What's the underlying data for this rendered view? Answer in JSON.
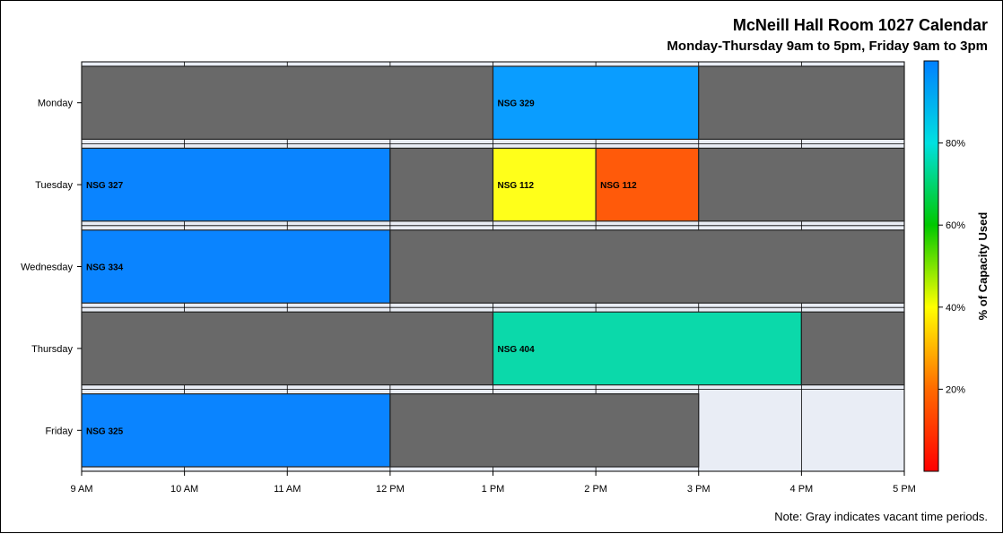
{
  "chart_data": {
    "type": "bar",
    "orientation": "horizontal-timeline",
    "title": "McNeill Hall Room 1027 Calendar",
    "subtitle": "Monday-Thursday 9am to 5pm, Friday 9am to 3pm",
    "footnote": "Note: Gray indicates vacant time periods.",
    "categories": [
      "Monday",
      "Tuesday",
      "Wednesday",
      "Thursday",
      "Friday"
    ],
    "x_ticks": [
      {
        "value": 9,
        "label": "9 AM"
      },
      {
        "value": 10,
        "label": "10 AM"
      },
      {
        "value": 11,
        "label": "11 AM"
      },
      {
        "value": 12,
        "label": "12 PM"
      },
      {
        "value": 13,
        "label": "1 PM"
      },
      {
        "value": 14,
        "label": "2 PM"
      },
      {
        "value": 15,
        "label": "3 PM"
      },
      {
        "value": 16,
        "label": "4 PM"
      },
      {
        "value": 17,
        "label": "5 PM"
      }
    ],
    "xlim": [
      9,
      17
    ],
    "grid": true,
    "vacant_color": "#696969",
    "background_color": "#E9EDF5",
    "segments": [
      {
        "day": "Monday",
        "start": 9,
        "end": 13,
        "vacant": true,
        "label": ""
      },
      {
        "day": "Monday",
        "start": 13,
        "end": 15,
        "vacant": false,
        "label": "NSG 329",
        "color": "#0A9DFF"
      },
      {
        "day": "Monday",
        "start": 15,
        "end": 17,
        "vacant": true,
        "label": ""
      },
      {
        "day": "Tuesday",
        "start": 9,
        "end": 12,
        "vacant": false,
        "label": "NSG 327",
        "color": "#0A84FF"
      },
      {
        "day": "Tuesday",
        "start": 12,
        "end": 13,
        "vacant": true,
        "label": ""
      },
      {
        "day": "Tuesday",
        "start": 13,
        "end": 14,
        "vacant": false,
        "label": "NSG 112",
        "color": "#FFFF1A"
      },
      {
        "day": "Tuesday",
        "start": 14,
        "end": 15,
        "vacant": false,
        "label": "NSG 112",
        "color": "#FF5A0A"
      },
      {
        "day": "Tuesday",
        "start": 15,
        "end": 17,
        "vacant": true,
        "label": ""
      },
      {
        "day": "Wednesday",
        "start": 9,
        "end": 12,
        "vacant": false,
        "label": "NSG 334",
        "color": "#0A84FF"
      },
      {
        "day": "Wednesday",
        "start": 12,
        "end": 17,
        "vacant": true,
        "label": ""
      },
      {
        "day": "Thursday",
        "start": 9,
        "end": 13,
        "vacant": true,
        "label": ""
      },
      {
        "day": "Thursday",
        "start": 13,
        "end": 16,
        "vacant": false,
        "label": "NSG 404",
        "color": "#0BD9AA"
      },
      {
        "day": "Thursday",
        "start": 16,
        "end": 17,
        "vacant": true,
        "label": ""
      },
      {
        "day": "Friday",
        "start": 9,
        "end": 12,
        "vacant": false,
        "label": "NSG 325",
        "color": "#0A84FF"
      },
      {
        "day": "Friday",
        "start": 12,
        "end": 15,
        "vacant": true,
        "label": ""
      }
    ],
    "color_legend": {
      "title": "% of Capacity Used",
      "placement": "right",
      "ticks": [
        {
          "value": 20,
          "label": "20%"
        },
        {
          "value": 40,
          "label": "40%"
        },
        {
          "value": 60,
          "label": "60%"
        },
        {
          "value": 80,
          "label": "80%"
        }
      ],
      "range": [
        0,
        100
      ],
      "gradient": [
        "#FF0000",
        "#FF6A00",
        "#FFFF00",
        "#00C800",
        "#00E0E0",
        "#0080FF"
      ]
    }
  }
}
